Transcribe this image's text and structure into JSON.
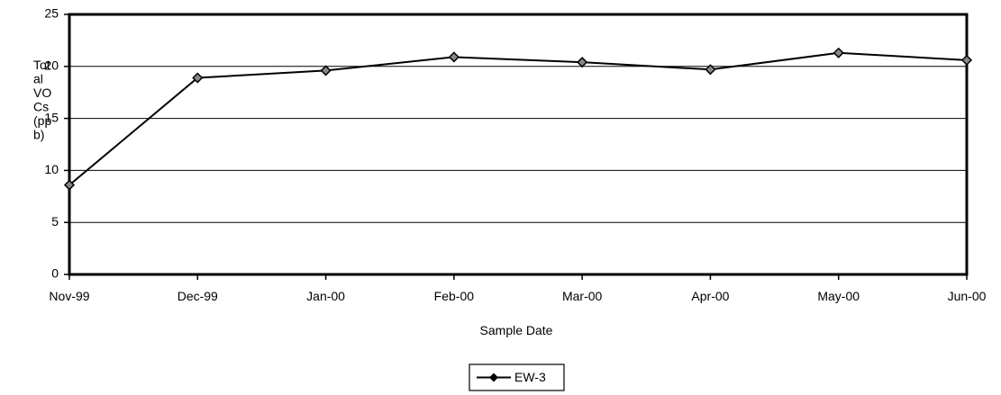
{
  "chart_data": {
    "type": "line",
    "title": "",
    "xlabel": "Sample Date",
    "ylabel_lines": [
      "Tot",
      "al",
      "VO",
      "Cs",
      "(pp",
      "b)"
    ],
    "categories": [
      "Nov-99",
      "Dec-99",
      "Jan-00",
      "Feb-00",
      "Mar-00",
      "Apr-00",
      "May-00",
      "Jun-00"
    ],
    "series": [
      {
        "name": "EW-3",
        "values": [
          8.6,
          18.9,
          19.6,
          20.9,
          20.4,
          19.7,
          21.3,
          20.6
        ],
        "color": "#000000",
        "marker": "diamond"
      }
    ],
    "ylim": [
      0,
      25
    ],
    "yticks": [
      0,
      5,
      10,
      15,
      20,
      25
    ],
    "grid": true,
    "legend_position": "bottom-center"
  }
}
